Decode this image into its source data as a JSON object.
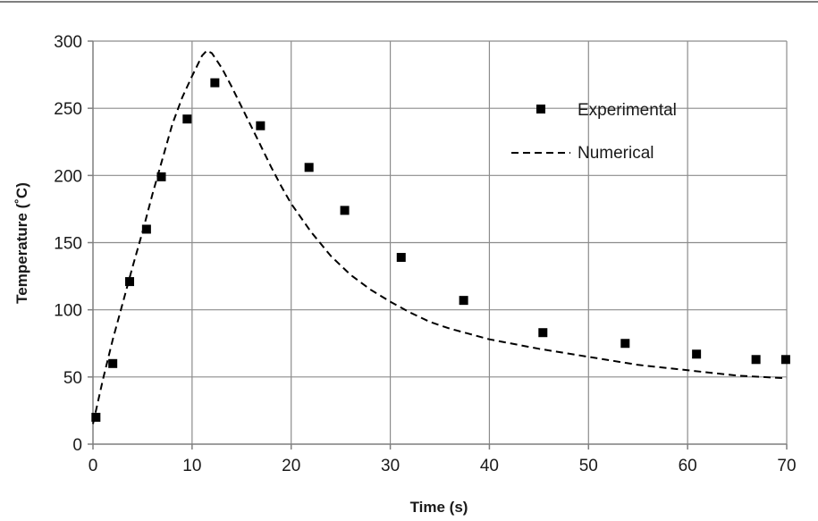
{
  "chart_data": {
    "type": "scatter",
    "title": "",
    "xlabel": "Time (s)",
    "ylabel": "Temperature (˚C)",
    "xlim": [
      0,
      70
    ],
    "ylim": [
      0,
      300
    ],
    "xticks": [
      0,
      10,
      20,
      30,
      40,
      50,
      60,
      70
    ],
    "yticks": [
      0,
      50,
      100,
      150,
      200,
      250,
      300
    ],
    "grid": true,
    "legend_position": "top-right",
    "series": [
      {
        "name": "Experimental",
        "type": "scatter",
        "marker": "square",
        "color": "#000000",
        "x": [
          0.3,
          2.0,
          3.7,
          5.4,
          6.9,
          9.5,
          12.3,
          16.9,
          21.8,
          25.4,
          31.1,
          37.4,
          45.4,
          53.7,
          60.9,
          66.9,
          69.9
        ],
        "y": [
          20,
          60,
          121,
          160,
          199,
          242,
          269,
          237,
          206,
          174,
          139,
          107,
          83,
          75,
          67,
          63,
          63
        ]
      },
      {
        "name": "Numerical",
        "type": "line",
        "style": "dashed",
        "color": "#000000",
        "x": [
          0,
          1,
          2,
          3,
          4,
          5,
          6,
          7,
          8,
          9,
          10,
          11,
          11.5,
          12,
          13,
          14,
          15,
          16,
          17,
          18,
          19,
          20,
          22,
          24,
          26,
          28,
          30,
          32,
          34,
          36,
          38,
          40,
          45,
          50,
          55,
          60,
          65,
          70
        ],
        "y": [
          15,
          48,
          78,
          105,
          132,
          158,
          186,
          212,
          238,
          258,
          274,
          289,
          293,
          291,
          280,
          266,
          251,
          236,
          221,
          206,
          192,
          179,
          158,
          140,
          126,
          115,
          106,
          98,
          91,
          86,
          82,
          78,
          71,
          65,
          59,
          55,
          51,
          49
        ]
      }
    ]
  }
}
